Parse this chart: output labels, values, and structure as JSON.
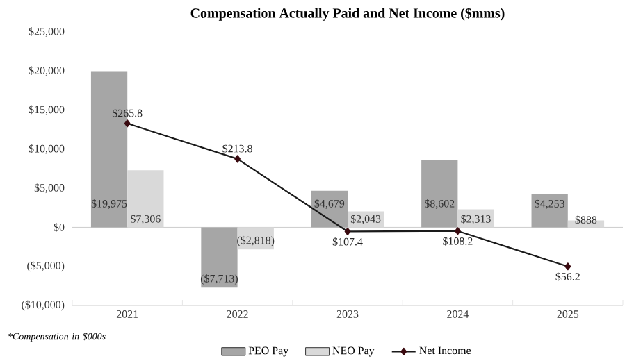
{
  "chart_data": {
    "type": "bar",
    "title": "Compensation Actually Paid and Net Income ($mms)",
    "categories": [
      "2021",
      "2022",
      "2023",
      "2024",
      "2025"
    ],
    "series": [
      {
        "name": "PEO Pay",
        "color": "#a6a6a6",
        "values": [
          19975,
          -7713,
          4679,
          8602,
          4253
        ],
        "value_labels": [
          "$19,975",
          "($7,713)",
          "$4,679",
          "$8,602",
          "$4,253"
        ]
      },
      {
        "name": "NEO Pay",
        "color": "#d9d9d9",
        "values": [
          7306,
          -2818,
          2043,
          2313,
          888
        ],
        "value_labels": [
          "$7,306",
          "($2,818)",
          "$2,043",
          "$2,313",
          "$888"
        ]
      },
      {
        "name": "Net Income",
        "type": "line",
        "axis": "y2",
        "color": "#1a1a1a",
        "marker": "diamond",
        "values": [
          265.8,
          213.8,
          107.4,
          108.2,
          56.2
        ],
        "value_labels": [
          "$265.8",
          "$213.8",
          "$107.4",
          "$108.2",
          "$56.2"
        ]
      }
    ],
    "ylim": [
      -10000,
      25000
    ],
    "yticks": [
      {
        "value": -10000,
        "label": "($10,000)"
      },
      {
        "value": -5000,
        "label": "($5,000)"
      },
      {
        "value": 0,
        "label": "$0"
      },
      {
        "value": 5000,
        "label": "$5,000"
      },
      {
        "value": 10000,
        "label": "$10,000"
      },
      {
        "value": 15000,
        "label": "$15,000"
      },
      {
        "value": 20000,
        "label": "$20,000"
      },
      {
        "value": 25000,
        "label": "$25,000"
      }
    ],
    "legend": "bottom",
    "annotations": [
      "*Compensation in $000s"
    ]
  }
}
